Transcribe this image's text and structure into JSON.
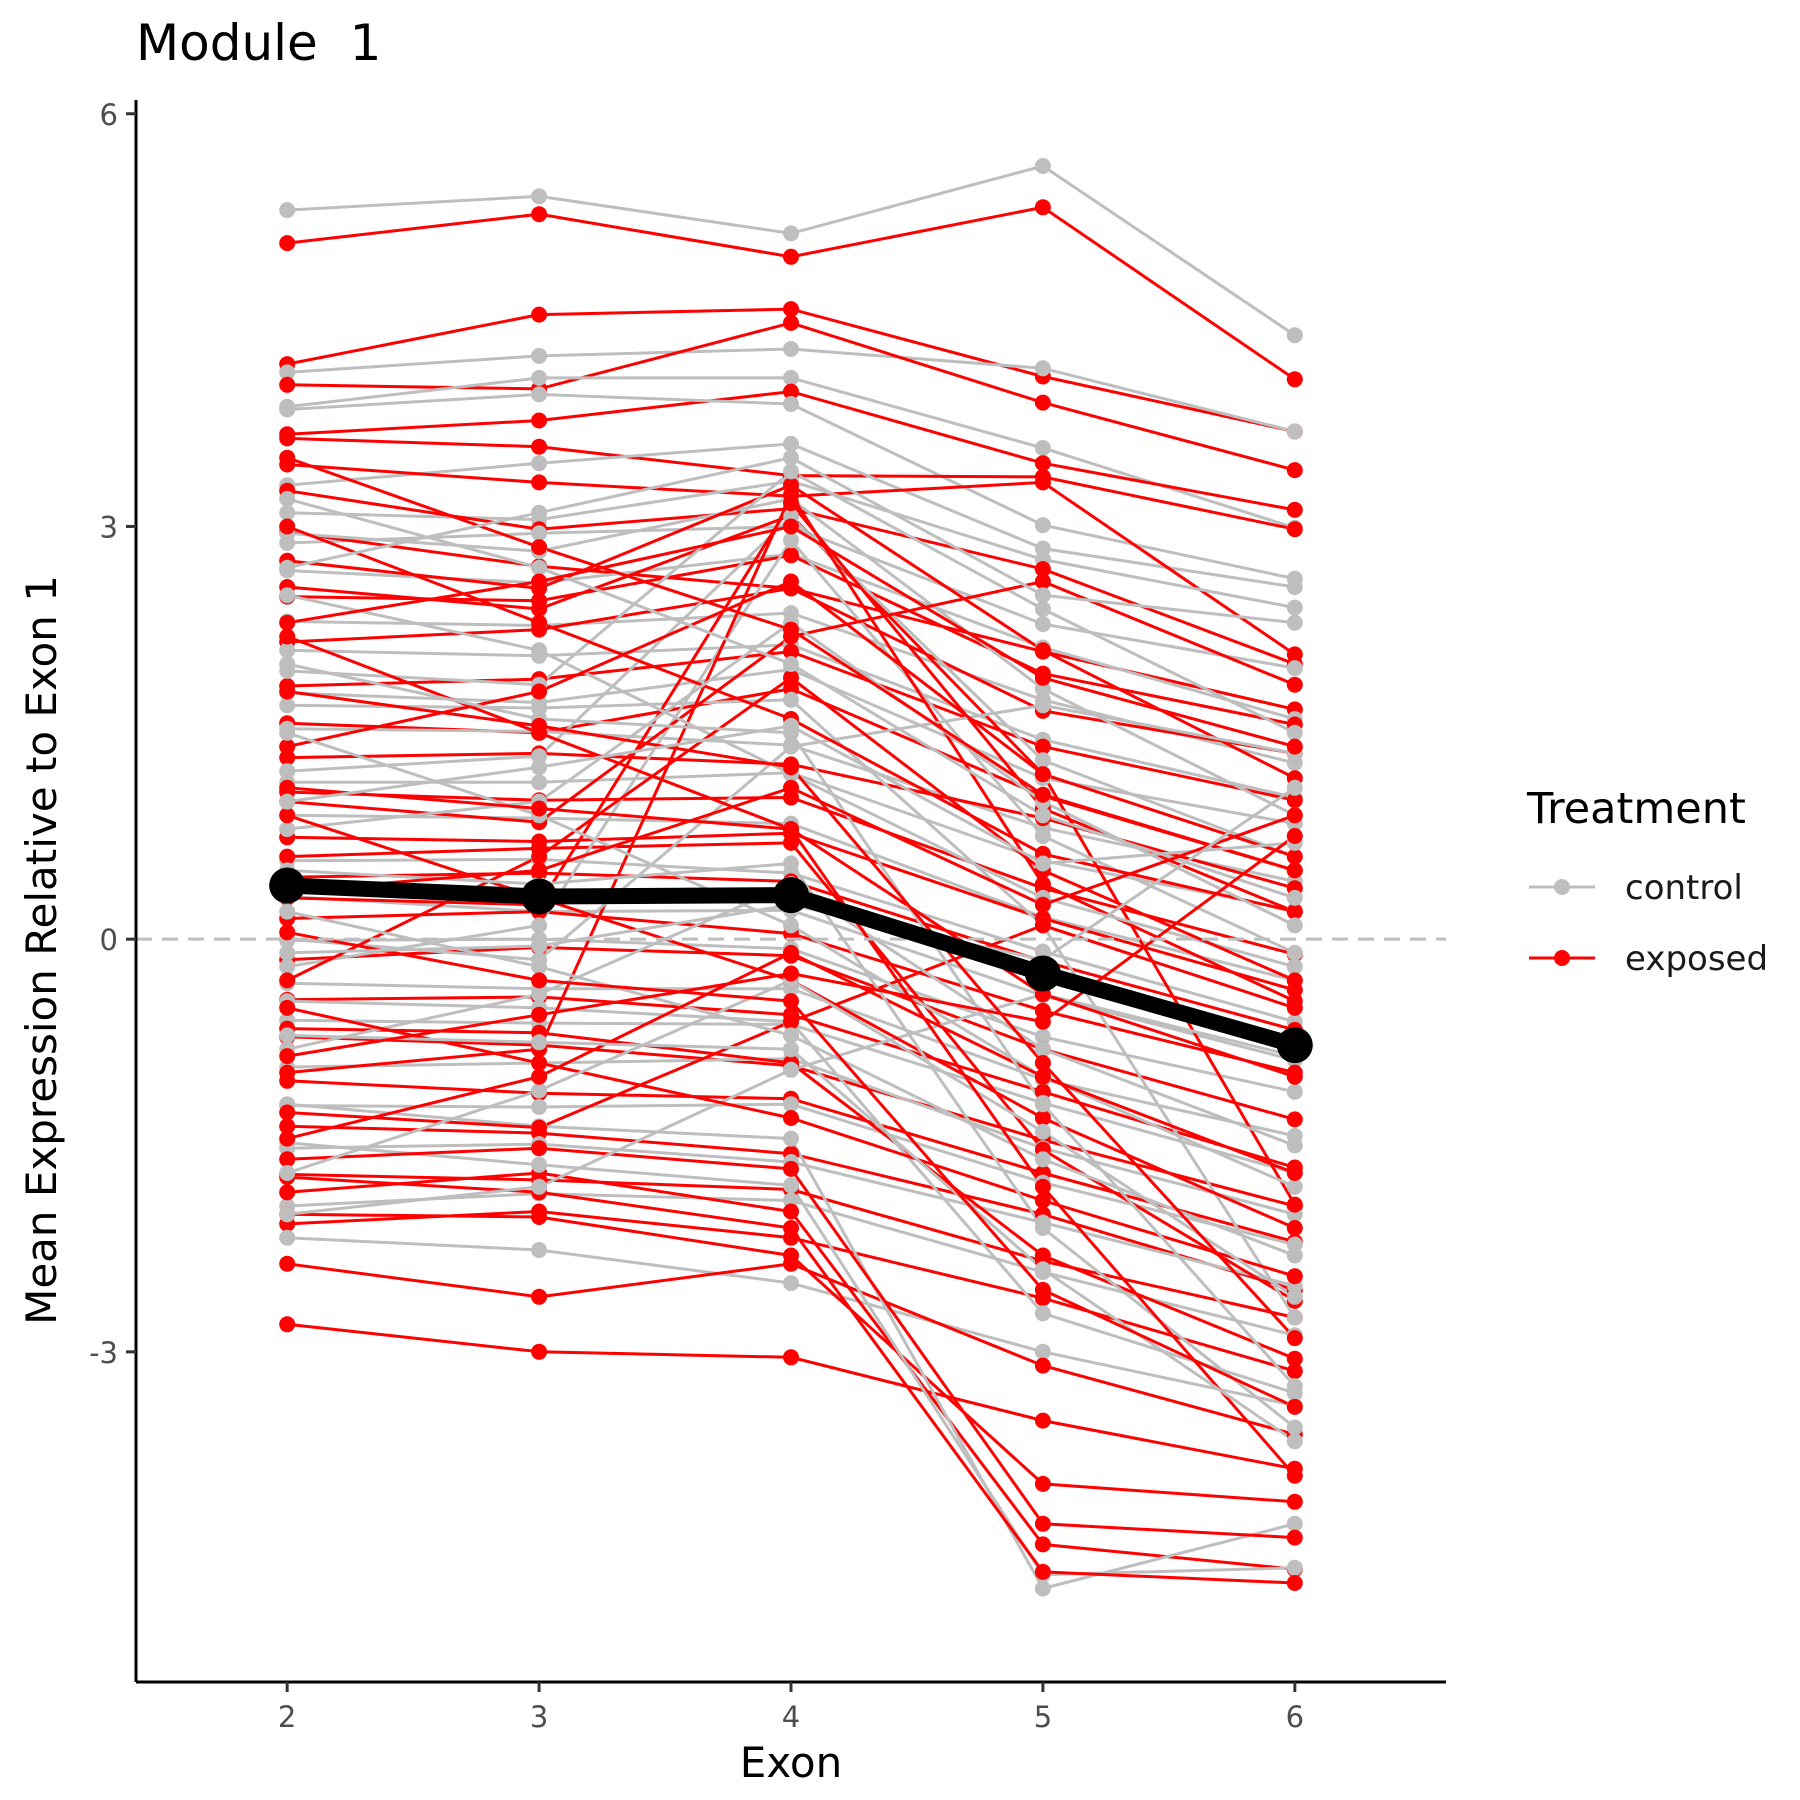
{
  "title": "Module  1",
  "legend": {
    "title": "Treatment",
    "items": [
      {
        "label": "control",
        "color": "#BEBEBE"
      },
      {
        "label": "exposed",
        "color": "#FF0000"
      }
    ]
  },
  "chart_data": {
    "type": "line",
    "title": "Module  1",
    "xlabel": "Exon",
    "ylabel": "Mean Expression Relative to Exon 1",
    "x": [
      2,
      3,
      4,
      5,
      6
    ],
    "xlim": [
      1.4,
      6.6
    ],
    "ylim": [
      -5.4,
      6.1
    ],
    "y_ticks": [
      6,
      3,
      0,
      -3
    ],
    "y_tick_labels": [
      "6",
      "3",
      "0",
      "-3"
    ],
    "x_tick_labels": [
      "2",
      "3",
      "4",
      "5",
      "6"
    ],
    "reference_line": {
      "y": 0,
      "style": "dashed",
      "color": "#BEBEBE"
    },
    "grid": false,
    "legend_position": "right",
    "mean_line": {
      "color": "#000000",
      "values": [
        0.39,
        0.31,
        0.32,
        -0.25,
        -0.77
      ]
    },
    "series": [
      {
        "group": "control",
        "values": [
          5.3,
          5.4,
          5.13,
          5.62,
          4.39
        ]
      },
      {
        "group": "exposed",
        "values": [
          5.06,
          5.27,
          4.96,
          5.32,
          4.07
        ]
      },
      {
        "group": "exposed",
        "values": [
          4.18,
          4.54,
          4.58,
          4.09,
          3.69
        ]
      },
      {
        "group": "control",
        "values": [
          4.12,
          4.24,
          4.29,
          4.15,
          3.69
        ]
      },
      {
        "group": "exposed",
        "values": [
          4.03,
          4.0,
          4.48,
          3.9,
          3.41
        ]
      },
      {
        "group": "control",
        "values": [
          3.87,
          4.08,
          4.08,
          3.57,
          2.99
        ]
      },
      {
        "group": "exposed",
        "values": [
          3.67,
          3.77,
          3.98,
          3.46,
          3.12
        ]
      },
      {
        "group": "control",
        "values": [
          3.85,
          3.96,
          3.89,
          3.01,
          2.62
        ]
      },
      {
        "group": "exposed",
        "values": [
          3.64,
          3.58,
          3.37,
          3.36,
          2.98
        ]
      },
      {
        "group": "control",
        "values": [
          3.3,
          3.46,
          3.6,
          2.84,
          2.56
        ]
      },
      {
        "group": "exposed",
        "values": [
          3.45,
          3.32,
          3.22,
          3.32,
          2.07
        ]
      },
      {
        "group": "control",
        "values": [
          3.1,
          3.05,
          3.33,
          2.76,
          2.41
        ]
      },
      {
        "group": "exposed",
        "values": [
          3.26,
          2.98,
          3.13,
          2.69,
          2.0
        ]
      },
      {
        "group": "control",
        "values": [
          2.88,
          2.95,
          3.0,
          2.29,
          1.97
        ]
      },
      {
        "group": "exposed",
        "values": [
          2.96,
          2.71,
          2.55,
          2.09,
          1.67
        ]
      },
      {
        "group": "control",
        "values": [
          2.68,
          2.59,
          2.8,
          2.12,
          1.6
        ]
      },
      {
        "group": "exposed",
        "values": [
          2.49,
          2.46,
          2.79,
          1.93,
          1.56
        ]
      },
      {
        "group": "control",
        "values": [
          2.31,
          2.28,
          2.37,
          1.74,
          1.28
        ]
      },
      {
        "group": "exposed",
        "values": [
          2.16,
          2.25,
          2.55,
          1.66,
          1.35
        ]
      },
      {
        "group": "control",
        "values": [
          2.1,
          2.06,
          2.14,
          1.45,
          1.03
        ]
      },
      {
        "group": "exposed",
        "values": [
          1.84,
          1.89,
          2.09,
          1.4,
          1.01
        ]
      },
      {
        "group": "control",
        "values": [
          1.79,
          1.72,
          1.96,
          1.17,
          0.84
        ]
      },
      {
        "group": "exposed",
        "values": [
          1.57,
          1.5,
          1.82,
          1.04,
          0.5
        ]
      },
      {
        "group": "control",
        "values": [
          1.53,
          1.51,
          1.41,
          0.81,
          0.42
        ]
      },
      {
        "group": "exposed",
        "values": [
          1.32,
          1.35,
          1.27,
          0.88,
          0.37
        ]
      },
      {
        "group": "control",
        "values": [
          1.14,
          1.14,
          1.21,
          0.57,
          0.21
        ]
      },
      {
        "group": "exposed",
        "values": [
          1.07,
          1.01,
          1.03,
          0.37,
          -0.11
        ]
      },
      {
        "group": "control",
        "values": [
          0.9,
          0.88,
          0.84,
          0.16,
          -0.3
        ]
      },
      {
        "group": "exposed",
        "values": [
          0.74,
          0.71,
          0.77,
          0.15,
          -0.37
        ]
      },
      {
        "group": "control",
        "values": [
          0.57,
          0.58,
          0.48,
          -0.09,
          -0.6
        ]
      },
      {
        "group": "exposed",
        "values": [
          0.45,
          0.48,
          0.42,
          -0.16,
          -0.66
        ]
      },
      {
        "group": "control",
        "values": [
          0.31,
          0.2,
          0.21,
          -0.41,
          -0.88
        ]
      },
      {
        "group": "exposed",
        "values": [
          0.15,
          0.2,
          0.04,
          -0.52,
          -0.97
        ]
      },
      {
        "group": "control",
        "values": [
          -0.01,
          0.0,
          -0.07,
          -0.71,
          -1.11
        ]
      },
      {
        "group": "exposed",
        "values": [
          -0.15,
          -0.06,
          -0.12,
          -0.8,
          -1.31
        ]
      },
      {
        "group": "control",
        "values": [
          -0.32,
          -0.36,
          -0.36,
          -1.02,
          -1.43
        ]
      },
      {
        "group": "exposed",
        "values": [
          -0.44,
          -0.42,
          -0.55,
          -1.11,
          -1.66
        ]
      },
      {
        "group": "control",
        "values": [
          -0.59,
          -0.61,
          -0.62,
          -1.19,
          -1.7
        ]
      },
      {
        "group": "exposed",
        "values": [
          -0.71,
          -0.77,
          -0.92,
          -1.46,
          -1.94
        ]
      },
      {
        "group": "control",
        "values": [
          -0.93,
          -0.9,
          -0.87,
          -1.52,
          -2.0
        ]
      },
      {
        "group": "exposed",
        "values": [
          -1.03,
          -1.12,
          -1.16,
          -1.7,
          -2.2
        ]
      },
      {
        "group": "control",
        "values": [
          -1.21,
          -1.22,
          -1.2,
          -1.77,
          -2.22
        ]
      },
      {
        "group": "exposed",
        "values": [
          -1.36,
          -1.41,
          -1.56,
          -2.0,
          -2.55
        ]
      },
      {
        "group": "control",
        "values": [
          -1.52,
          -1.49,
          -1.62,
          -2.06,
          -2.52
        ]
      },
      {
        "group": "exposed",
        "values": [
          -1.71,
          -1.75,
          -1.82,
          -2.34,
          -2.75
        ]
      },
      {
        "group": "control",
        "values": [
          -1.94,
          -1.85,
          -1.9,
          -2.42,
          -2.88
        ]
      },
      {
        "group": "exposed",
        "values": [
          -2.07,
          -1.98,
          -2.17,
          -2.61,
          -3.14
        ]
      },
      {
        "group": "control",
        "values": [
          -2.17,
          -2.26,
          -2.5,
          -3.0,
          -3.39
        ]
      },
      {
        "group": "exposed",
        "values": [
          -2.36,
          -2.6,
          -2.36,
          -3.1,
          -3.6
        ]
      },
      {
        "group": "exposed",
        "values": [
          -2.8,
          -3.0,
          -3.04,
          -3.5,
          -3.85
        ]
      },
      {
        "group": "exposed",
        "values": [
          -2.0,
          -2.02,
          -2.3,
          -3.96,
          -4.09
        ]
      },
      {
        "group": "exposed",
        "values": [
          -1.84,
          -1.7,
          -1.98,
          -4.4,
          -4.58
        ]
      },
      {
        "group": "control",
        "values": [
          -1.48,
          -1.64,
          -1.79,
          -4.62,
          -4.57
        ]
      },
      {
        "group": "control",
        "values": [
          -1.2,
          -1.36,
          -1.45,
          -4.72,
          -4.25
        ]
      },
      {
        "group": "exposed",
        "values": [
          -1.6,
          -1.52,
          -1.67,
          -4.25,
          -4.35
        ]
      },
      {
        "group": "exposed",
        "values": [
          -1.73,
          -1.84,
          -2.1,
          -4.6,
          -4.68
        ]
      },
      {
        "group": "exposed",
        "values": [
          -0.65,
          -0.68,
          -0.9,
          -2.3,
          -3.05
        ]
      },
      {
        "group": "control",
        "values": [
          -0.45,
          -0.5,
          -0.6,
          -2.72,
          -3.3
        ]
      },
      {
        "group": "exposed",
        "values": [
          0.6,
          0.66,
          0.7,
          -1.53,
          -2.63
        ]
      },
      {
        "group": "control",
        "values": [
          1.7,
          1.68,
          1.74,
          0.1,
          -2.75
        ]
      },
      {
        "group": "exposed",
        "values": [
          2.56,
          2.4,
          3.08,
          1.2,
          -1.93
        ]
      },
      {
        "group": "control",
        "values": [
          2.95,
          2.82,
          3.2,
          1.82,
          0.9
        ]
      },
      {
        "group": "exposed",
        "values": [
          2.75,
          2.55,
          3.3,
          2.1,
          1.17
        ]
      },
      {
        "group": "control",
        "values": [
          1.22,
          1.33,
          3.07,
          1.3,
          0.6
        ]
      },
      {
        "group": "exposed",
        "values": [
          0.3,
          0.25,
          3.17,
          0.95,
          0.2
        ]
      },
      {
        "group": "control",
        "values": [
          -0.2,
          0.1,
          2.9,
          0.75,
          -0.1
        ]
      },
      {
        "group": "exposed",
        "values": [
          -0.97,
          -0.8,
          3.23,
          0.4,
          -0.45
        ]
      },
      {
        "group": "control",
        "values": [
          1.95,
          1.85,
          3.4,
          2.4,
          1.5
        ]
      },
      {
        "group": "exposed",
        "values": [
          1.0,
          0.85,
          2.2,
          2.6,
          1.85
        ]
      },
      {
        "group": "control",
        "values": [
          0.0,
          -0.15,
          1.4,
          1.7,
          1.35
        ]
      },
      {
        "group": "exposed",
        "values": [
          -1.26,
          -1.37,
          -0.6,
          0.1,
          -0.5
        ]
      },
      {
        "group": "control",
        "values": [
          -2.0,
          -1.8,
          -0.95,
          -0.4,
          -0.85
        ]
      },
      {
        "group": "exposed",
        "values": [
          3.0,
          2.3,
          1.6,
          0.62,
          0.2
        ]
      },
      {
        "group": "control",
        "values": [
          2.5,
          2.1,
          1.2,
          0.3,
          -0.2
        ]
      },
      {
        "group": "exposed",
        "values": [
          1.4,
          1.8,
          2.6,
          1.2,
          0.6
        ]
      },
      {
        "group": "control",
        "values": [
          0.8,
          1.0,
          2.3,
          1.0,
          0.1
        ]
      },
      {
        "group": "exposed",
        "values": [
          -0.3,
          0.6,
          1.9,
          0.5,
          -0.3
        ]
      },
      {
        "group": "control",
        "values": [
          -0.8,
          -0.4,
          0.4,
          -0.8,
          -1.5
        ]
      },
      {
        "group": "exposed",
        "values": [
          2.2,
          1.5,
          0.8,
          -0.4,
          -1.0
        ]
      },
      {
        "group": "control",
        "values": [
          1.5,
          0.9,
          0.1,
          -1.0,
          -1.8
        ]
      },
      {
        "group": "exposed",
        "values": [
          0.9,
          0.3,
          -0.3,
          -1.3,
          -2.1
        ]
      },
      {
        "group": "control",
        "values": [
          0.2,
          -0.2,
          -0.7,
          -1.6,
          -2.3
        ]
      },
      {
        "group": "exposed",
        "values": [
          -0.5,
          -0.9,
          -1.3,
          -1.9,
          -2.45
        ]
      },
      {
        "group": "control",
        "values": [
          3.2,
          2.7,
          2.0,
          0.9,
          0.3
        ]
      },
      {
        "group": "exposed",
        "values": [
          3.5,
          2.85,
          2.25,
          1.05,
          0.5
        ]
      },
      {
        "group": "control",
        "values": [
          -1.7,
          -1.1,
          -0.3,
          -1.4,
          -2.6
        ]
      },
      {
        "group": "exposed",
        "values": [
          -1.45,
          -1.0,
          -0.1,
          -1.0,
          -1.7
        ]
      },
      {
        "group": "control",
        "values": [
          0.5,
          0.4,
          0.55,
          -2.1,
          -3.55
        ]
      },
      {
        "group": "exposed",
        "values": [
          1.1,
          0.95,
          0.8,
          -1.8,
          -3.9
        ]
      },
      {
        "group": "control",
        "values": [
          -0.7,
          -0.75,
          -0.8,
          -2.4,
          -3.65
        ]
      },
      {
        "group": "exposed",
        "values": [
          0.05,
          -0.3,
          -0.45,
          -2.55,
          -3.4
        ]
      },
      {
        "group": "control",
        "values": [
          2.0,
          1.6,
          1.5,
          -1.2,
          -3.25
        ]
      },
      {
        "group": "exposed",
        "values": [
          1.8,
          1.55,
          1.25,
          -0.9,
          -2.9
        ]
      },
      {
        "group": "control",
        "values": [
          1.0,
          1.25,
          1.55,
          0.55,
          0.7
        ]
      },
      {
        "group": "exposed",
        "values": [
          0.35,
          0.5,
          1.1,
          0.25,
          0.9
        ]
      },
      {
        "group": "control",
        "values": [
          -0.1,
          -0.05,
          0.25,
          -0.15,
          1.1
        ]
      },
      {
        "group": "exposed",
        "values": [
          -0.85,
          -0.55,
          -0.25,
          -0.6,
          0.75
        ]
      },
      {
        "group": "control",
        "values": [
          2.7,
          3.1,
          3.5,
          2.5,
          2.3
        ]
      },
      {
        "group": "exposed",
        "values": [
          2.3,
          2.6,
          3.0,
          1.9,
          1.4
        ]
      }
    ]
  }
}
